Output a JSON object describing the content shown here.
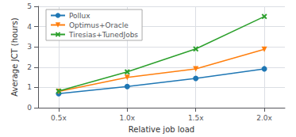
{
  "chart_data": {
    "type": "line",
    "xlabel": "Relative job load",
    "ylabel": "Average JCT (hours)",
    "x": [
      0.5,
      1.0,
      1.5,
      2.0
    ],
    "series": [
      {
        "name": "Pollux",
        "color": "#1f77b4",
        "marker": "o",
        "values": [
          0.7,
          1.05,
          1.45,
          1.92
        ]
      },
      {
        "name": "Optimus+Oracle",
        "color": "#ff7f0e",
        "marker": "v",
        "values": [
          0.8,
          1.5,
          1.92,
          2.88
        ]
      },
      {
        "name": "Tiresias+TunedJobs",
        "color": "#2ca02c",
        "marker": "x",
        "values": [
          0.82,
          1.77,
          2.9,
          4.5
        ]
      }
    ],
    "xlim": [
      0.35,
      2.15
    ],
    "xticks": [
      {
        "value": 0.5,
        "label": "0.5x"
      },
      {
        "value": 1.0,
        "label": "1.0x"
      },
      {
        "value": 1.5,
        "label": "1.5x"
      },
      {
        "value": 2.0,
        "label": "2.0x"
      }
    ],
    "ylim": [
      0,
      5
    ],
    "yticks": [
      0,
      1,
      2,
      3,
      4,
      5
    ],
    "grid": true,
    "legend": "upper left"
  }
}
